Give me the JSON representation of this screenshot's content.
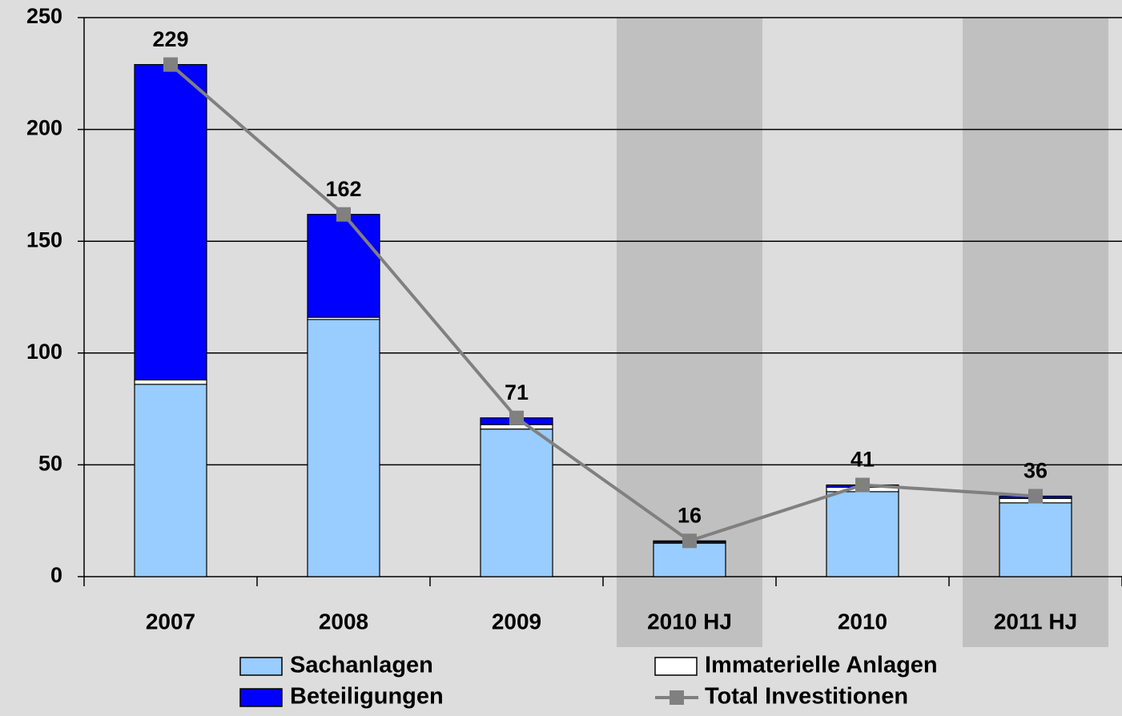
{
  "chart_data": {
    "type": "bar",
    "categories": [
      "2007",
      "2008",
      "2009",
      "2010 HJ",
      "2010",
      "2011 HJ"
    ],
    "shaded": [
      false,
      false,
      false,
      true,
      false,
      true
    ],
    "series": [
      {
        "name": "Sachanlagen",
        "color": "#99ccff",
        "values": [
          86,
          115,
          66,
          15,
          38,
          33
        ]
      },
      {
        "name": "Immaterielle Anlagen",
        "color": "#ffffff",
        "values": [
          2,
          1,
          2,
          0.5,
          2,
          2
        ]
      },
      {
        "name": "Beteiligungen",
        "color": "#0000ff",
        "values": [
          141,
          46,
          3,
          0.5,
          1,
          1
        ]
      },
      {
        "name": "Total Investitionen",
        "type": "line",
        "color": "#808080",
        "values": [
          229,
          162,
          71,
          16,
          41,
          36
        ]
      }
    ],
    "ylim": [
      0,
      250
    ],
    "yticks": [
      0,
      50,
      100,
      150,
      200,
      250
    ],
    "grid": true
  }
}
